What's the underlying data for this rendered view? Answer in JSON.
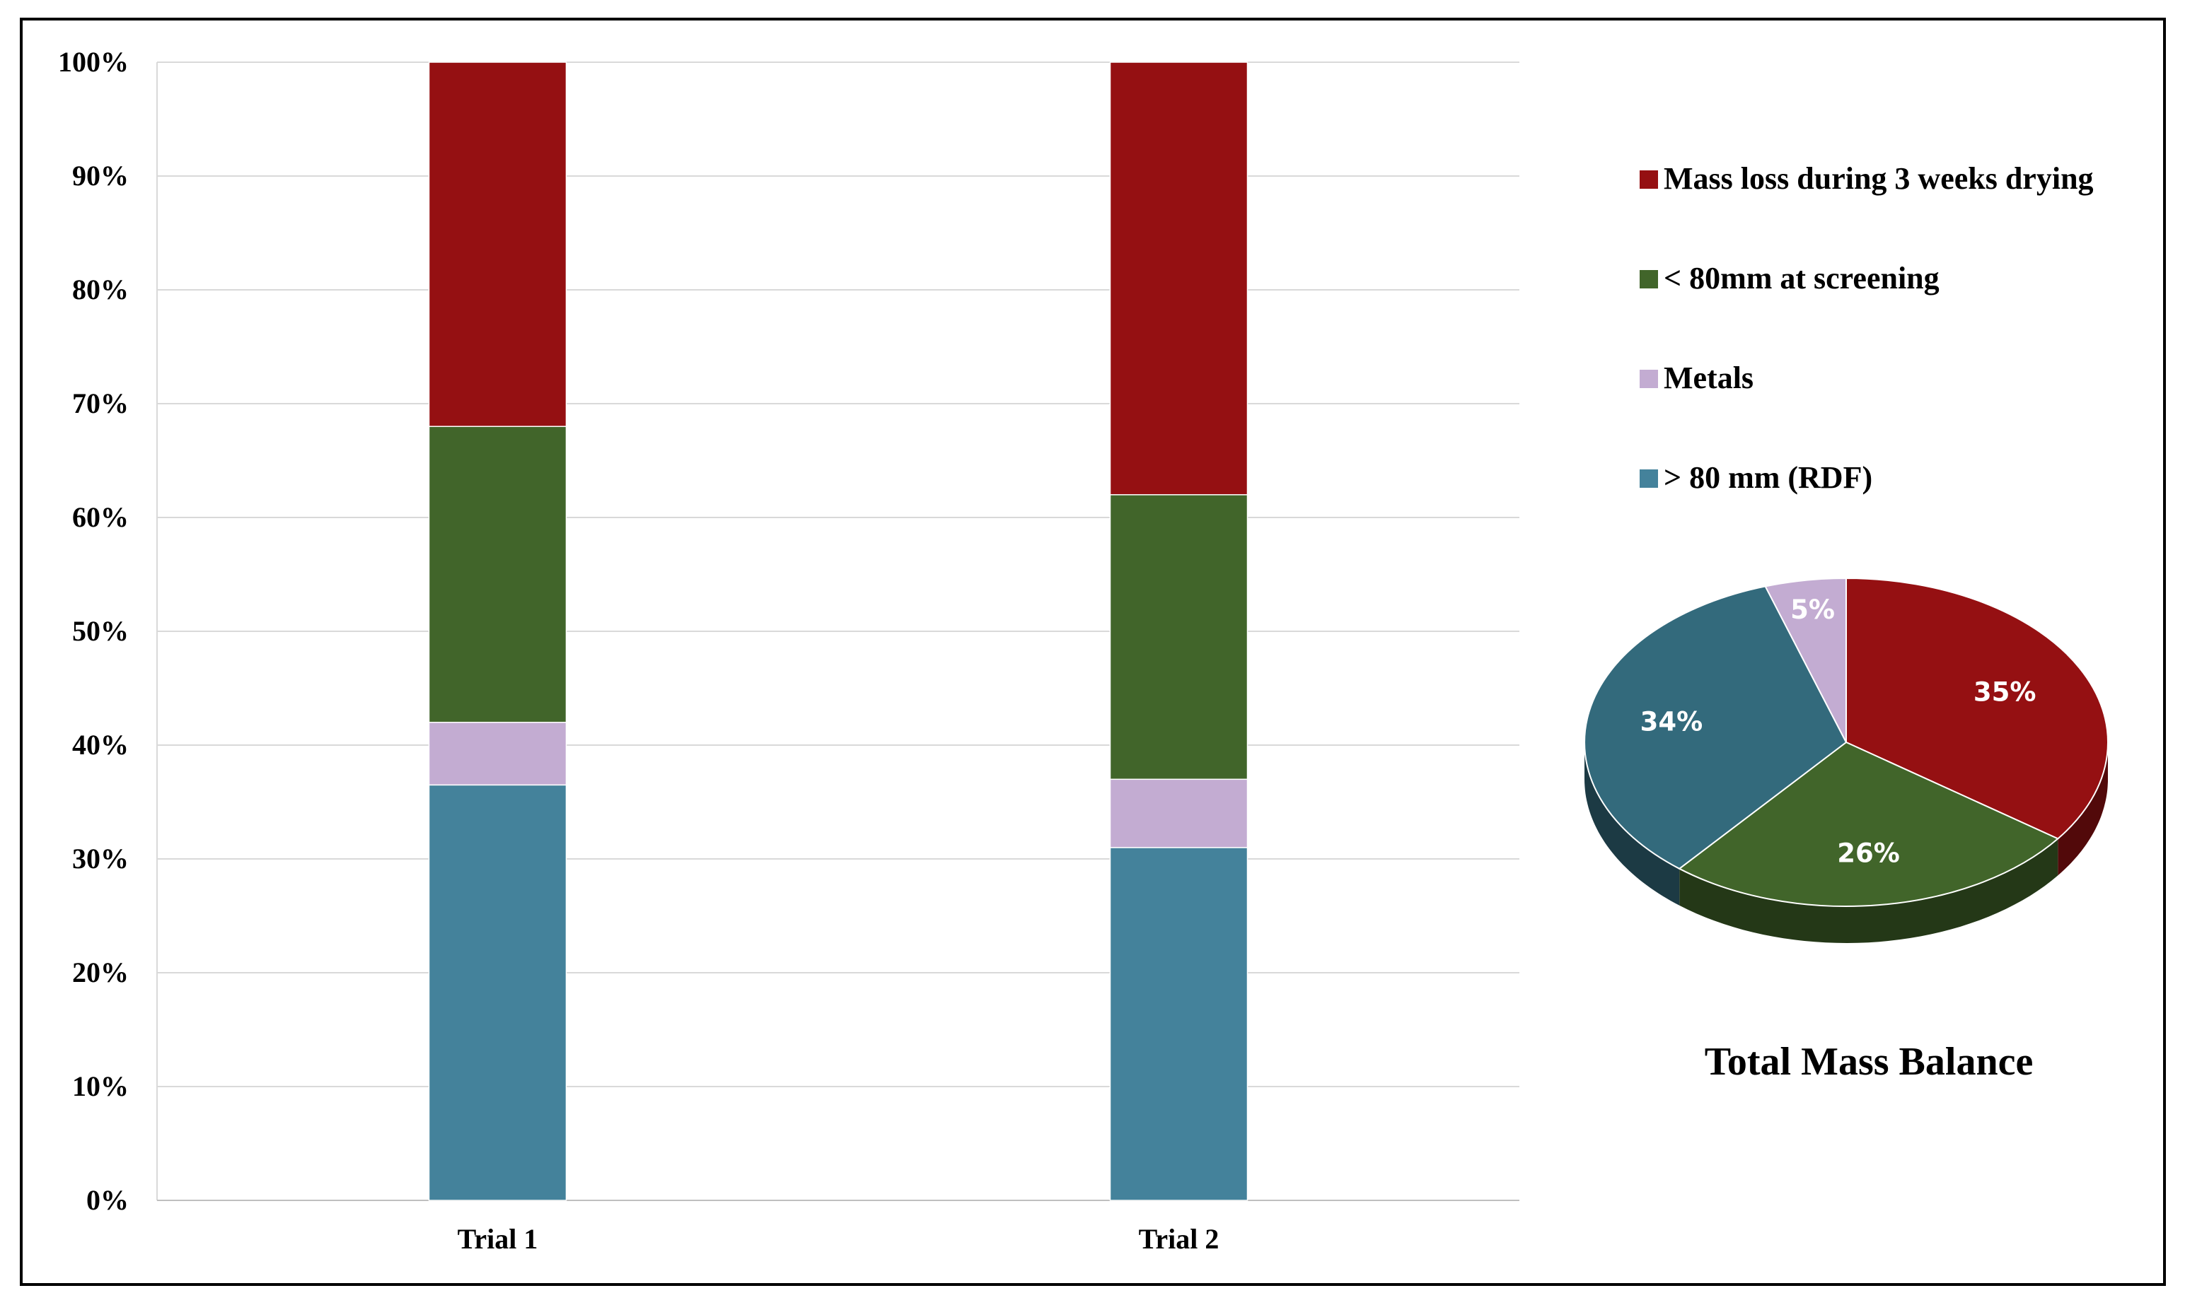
{
  "chart_data": [
    {
      "type": "bar",
      "stacked": true,
      "categories": [
        "Trial 1",
        "Trial 2"
      ],
      "ylim": [
        0,
        100
      ],
      "yticks": [
        "0%",
        "10%",
        "20%",
        "30%",
        "40%",
        "50%",
        "60%",
        "70%",
        "80%",
        "90%",
        "100%"
      ],
      "grid": true,
      "legend_position": "right",
      "series": [
        {
          "name": "> 80 mm (RDF)",
          "values": [
            36.5,
            31
          ],
          "color": "#44829B"
        },
        {
          "name": "Metals",
          "values": [
            5.5,
            6
          ],
          "color": "#C3ACD2"
        },
        {
          "name": "< 80mm at screening",
          "values": [
            26,
            25
          ],
          "color": "#41652A"
        },
        {
          "name": "Mass loss during 3 weeks drying",
          "values": [
            32,
            38
          ],
          "color": "#951012"
        }
      ],
      "legend_order": [
        "Mass loss during 3 weeks drying",
        "< 80mm at screening",
        "Metals",
        "> 80 mm (RDF)"
      ]
    },
    {
      "type": "pie",
      "title": "Total Mass Balance",
      "slices": [
        {
          "name": "Mass loss during 3 weeks drying",
          "value": 35,
          "label": "35%",
          "color": "#951012"
        },
        {
          "name": "< 80mm at screening",
          "value": 26,
          "label": "26%",
          "color": "#41652A"
        },
        {
          "name": "> 80 mm (RDF)",
          "value": 34,
          "label": "34%",
          "color": "#336A7C"
        },
        {
          "name": "Metals",
          "value": 5,
          "label": "5%",
          "color": "#C3ACD2"
        }
      ]
    }
  ]
}
